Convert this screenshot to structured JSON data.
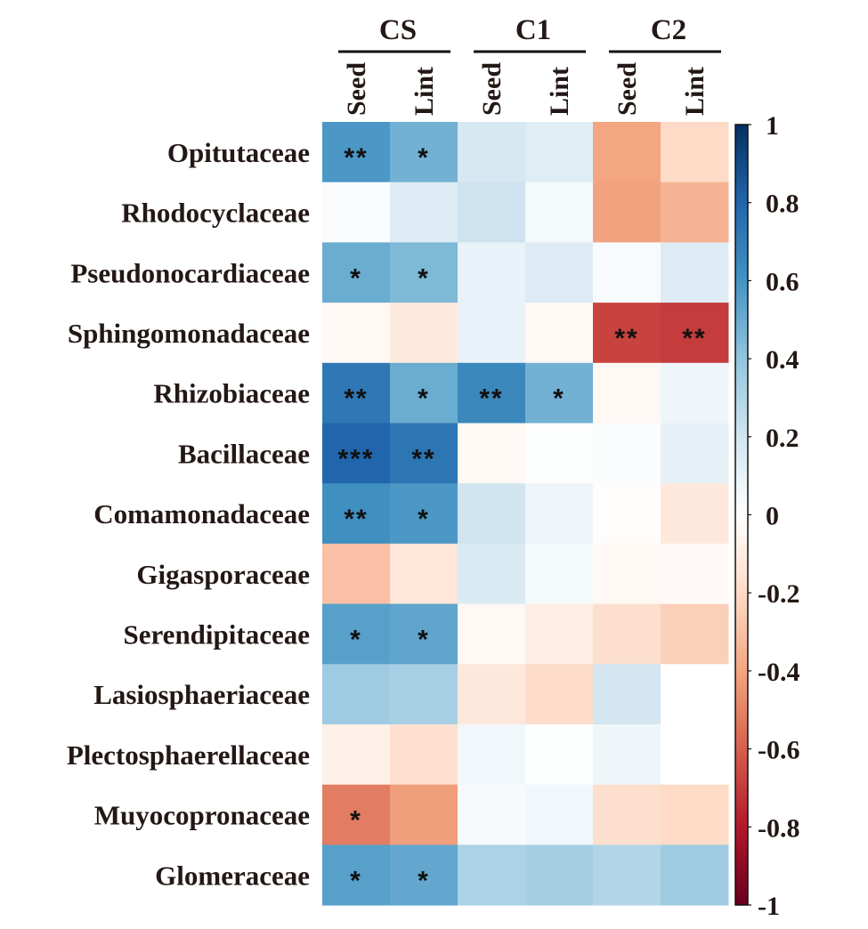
{
  "chart_data": {
    "type": "heatmap",
    "title": "",
    "groups": [
      {
        "label": "CS",
        "columns": [
          "Seed",
          "Lint"
        ]
      },
      {
        "label": "C1",
        "columns": [
          "Seed",
          "Lint"
        ]
      },
      {
        "label": "C2",
        "columns": [
          "Seed",
          "Lint"
        ]
      }
    ],
    "columns": [
      "CS Seed",
      "CS Lint",
      "C1 Seed",
      "C1 Lint",
      "C2 Seed",
      "C2 Lint"
    ],
    "column_labels": [
      "Seed",
      "Lint",
      "Seed",
      "Lint",
      "Seed",
      "Lint"
    ],
    "rows": [
      "Opitutaceae",
      "Rhodocyclaceae",
      "Pseudonocardiaceae",
      "Sphingomonadaceae",
      "Rhizobiaceae",
      "Bacillaceae",
      "Comamonadaceae",
      "Gigasporaceae",
      "Serendipitaceae",
      "Lasiosphaeriaceae",
      "Plectosphaerellaceae",
      "Muyocopronaceae",
      "Glomeraceae"
    ],
    "values": [
      [
        0.58,
        0.48,
        0.18,
        0.14,
        -0.4,
        -0.2
      ],
      [
        0.02,
        0.15,
        0.21,
        0.05,
        -0.41,
        -0.35
      ],
      [
        0.5,
        0.45,
        0.1,
        0.15,
        0.03,
        0.15
      ],
      [
        -0.04,
        -0.12,
        0.1,
        -0.04,
        -0.68,
        -0.7
      ],
      [
        0.72,
        0.5,
        0.65,
        0.48,
        -0.04,
        0.07
      ],
      [
        0.8,
        0.73,
        -0.04,
        0.01,
        0.02,
        0.11
      ],
      [
        0.62,
        0.58,
        0.2,
        0.08,
        -0.01,
        -0.13
      ],
      [
        -0.3,
        -0.14,
        0.16,
        0.05,
        -0.04,
        -0.03
      ],
      [
        0.55,
        0.53,
        -0.04,
        -0.1,
        -0.18,
        -0.24
      ],
      [
        0.36,
        0.33,
        -0.13,
        -0.19,
        0.19,
        0.0
      ],
      [
        -0.08,
        -0.17,
        0.06,
        0.01,
        0.07,
        0.0
      ],
      [
        -0.52,
        -0.42,
        0.04,
        0.06,
        -0.18,
        -0.2
      ],
      [
        0.55,
        0.52,
        0.32,
        0.34,
        0.3,
        0.36
      ]
    ],
    "significance": [
      [
        "**",
        "*",
        "",
        "",
        "",
        ""
      ],
      [
        "",
        "",
        "",
        "",
        "",
        ""
      ],
      [
        "*",
        "*",
        "",
        "",
        "",
        ""
      ],
      [
        "",
        "",
        "",
        "",
        "**",
        "**"
      ],
      [
        "**",
        "*",
        "**",
        "*",
        "",
        ""
      ],
      [
        "***",
        "**",
        "",
        "",
        "",
        ""
      ],
      [
        "**",
        "*",
        "",
        "",
        "",
        ""
      ],
      [
        "",
        "",
        "",
        "",
        "",
        ""
      ],
      [
        "*",
        "*",
        "",
        "",
        "",
        ""
      ],
      [
        "",
        "",
        "",
        "",
        "",
        ""
      ],
      [
        "",
        "",
        "",
        "",
        "",
        ""
      ],
      [
        "*",
        "",
        "",
        "",
        "",
        ""
      ],
      [
        "*",
        "*",
        "",
        "",
        "",
        ""
      ]
    ],
    "colorbar": {
      "range": [
        -1,
        1
      ],
      "ticks": [
        1,
        0.8,
        0.6,
        0.4,
        0.2,
        0,
        -0.2,
        -0.4,
        -0.6,
        -0.8,
        -1
      ],
      "tick_labels": [
        "1",
        "0.8",
        "0.6",
        "0.4",
        "0.2",
        "0",
        "-0.2",
        "-0.4",
        "-0.6",
        "-0.8",
        "-1"
      ],
      "colormap": "RdBu",
      "stops": [
        {
          "v": -1.0,
          "c": "#67001f"
        },
        {
          "v": -0.8,
          "c": "#b2182b"
        },
        {
          "v": -0.6,
          "c": "#d6604d"
        },
        {
          "v": -0.4,
          "c": "#f4a582"
        },
        {
          "v": -0.2,
          "c": "#fddbc7"
        },
        {
          "v": 0.0,
          "c": "#ffffff"
        },
        {
          "v": 0.2,
          "c": "#d1e5f0"
        },
        {
          "v": 0.4,
          "c": "#92c5de"
        },
        {
          "v": 0.6,
          "c": "#4393c3"
        },
        {
          "v": 0.8,
          "c": "#2166ac"
        },
        {
          "v": 1.0,
          "c": "#053061"
        }
      ],
      "placement": "right"
    }
  }
}
